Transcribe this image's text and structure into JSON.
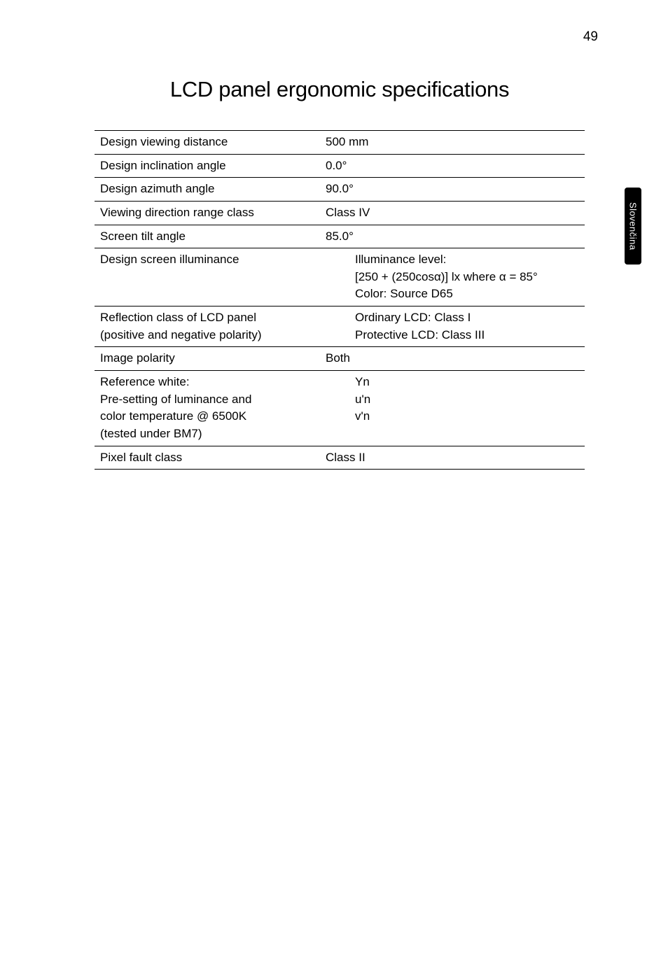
{
  "page_number": "49",
  "side_tab": "Slovenčina",
  "heading": "LCD panel ergonomic specifications",
  "table": {
    "rows": [
      {
        "label": "Design viewing distance",
        "value": "500 mm"
      },
      {
        "label": "Design inclination angle",
        "value": "0.0°"
      },
      {
        "label": "Design azimuth angle",
        "value": "90.0°"
      },
      {
        "label": "Viewing direction range class",
        "value": "Class IV"
      },
      {
        "label": "Screen tilt angle",
        "value": "85.0°"
      },
      {
        "label": "Design screen illuminance",
        "value_lines": [
          "Illuminance level:",
          "[250 + (250cosα)] lx where α = 85°",
          "Color: Source D65"
        ]
      },
      {
        "label_lines": [
          "Reflection class of LCD panel",
          "(positive and negative polarity)"
        ],
        "value_lines": [
          "Ordinary LCD: Class I",
          "Protective LCD: Class III"
        ]
      },
      {
        "label": "Image polarity",
        "value": "Both"
      },
      {
        "label_lines": [
          "Reference white:",
          "Pre-setting of luminance and",
          "color temperature @ 6500K",
          "(tested under BM7)"
        ],
        "value_lines": [
          "Yn",
          "u'n",
          "v'n"
        ]
      },
      {
        "label": "Pixel fault class",
        "value": "Class II"
      }
    ]
  }
}
